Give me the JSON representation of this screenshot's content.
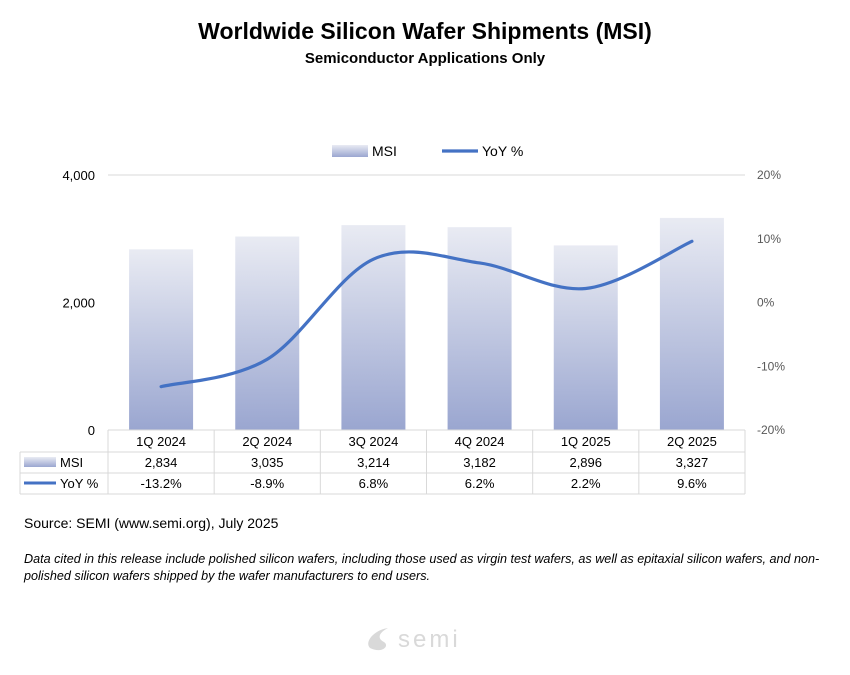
{
  "title": "Worldwide Silicon Wafer Shipments (MSI)",
  "subtitle": "Semiconductor Applications Only",
  "source": "Source: SEMI (www.semi.org), July 2025",
  "note": "Data cited in this release include polished silicon wafers, including those used as virgin test wafers, as well as epitaxial silicon wafers, and non-polished silicon wafers shipped by the wafer manufacturers to end users.",
  "logo_text": "semi",
  "chart_data": {
    "type": "bar+line",
    "categories": [
      "1Q 2024",
      "2Q 2024",
      "3Q 2024",
      "4Q 2024",
      "1Q 2025",
      "2Q 2025"
    ],
    "series": [
      {
        "name": "MSI",
        "type": "bar",
        "axis": "left",
        "values": [
          2834,
          3035,
          3214,
          3182,
          2896,
          3327
        ],
        "labels": [
          "2,834",
          "3,035",
          "3,214",
          "3,182",
          "2,896",
          "3,327"
        ],
        "color": "#9aa6d0"
      },
      {
        "name": "YoY %",
        "type": "line",
        "axis": "right",
        "values": [
          -13.2,
          -8.9,
          6.8,
          6.2,
          2.2,
          9.6
        ],
        "labels": [
          "-13.2%",
          "-8.9%",
          "6.8%",
          "6.2%",
          "2.2%",
          "9.6%"
        ],
        "color": "#4472c4"
      }
    ],
    "left_axis": {
      "ylim": [
        0,
        4000
      ],
      "ticks": [
        "0",
        "2,000",
        "4,000"
      ]
    },
    "right_axis": {
      "ylim": [
        -20,
        20
      ],
      "ticks": [
        "-20%",
        "-10%",
        "0%",
        "10%",
        "20%"
      ]
    },
    "grid": false,
    "legend": "top",
    "data_table": true
  }
}
